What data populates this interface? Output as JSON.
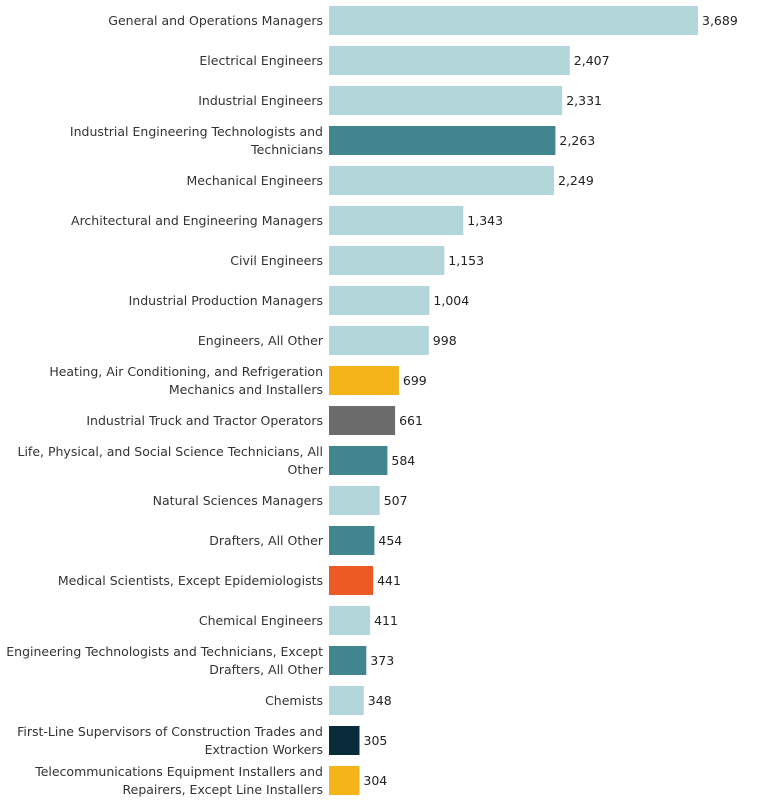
{
  "chart_data": {
    "type": "bar",
    "orientation": "horizontal",
    "title": "",
    "xlabel": "",
    "ylabel": "",
    "xlim": [
      0,
      3689
    ],
    "grid": false,
    "legend": "none",
    "categories": [
      [
        "General and Operations Managers"
      ],
      [
        "Electrical Engineers"
      ],
      [
        "Industrial Engineers"
      ],
      [
        "Industrial Engineering Technologists and",
        "Technicians"
      ],
      [
        "Mechanical Engineers"
      ],
      [
        "Architectural and Engineering Managers"
      ],
      [
        "Civil Engineers"
      ],
      [
        "Industrial Production Managers"
      ],
      [
        "Engineers, All Other"
      ],
      [
        "Heating, Air Conditioning, and Refrigeration",
        "Mechanics and Installers"
      ],
      [
        "Industrial Truck and Tractor Operators"
      ],
      [
        "Life, Physical, and Social Science Technicians, All",
        "Other"
      ],
      [
        "Natural Sciences Managers"
      ],
      [
        "Drafters, All Other"
      ],
      [
        "Medical Scientists, Except Epidemiologists"
      ],
      [
        "Chemical Engineers"
      ],
      [
        "Engineering Technologists and Technicians, Except",
        "Drafters, All Other"
      ],
      [
        "Chemists"
      ],
      [
        "First-Line Supervisors of Construction Trades and",
        "Extraction Workers"
      ],
      [
        "Telecommunications Equipment Installers and",
        "Repairers, Except Line Installers"
      ]
    ],
    "values": [
      3689,
      2407,
      2331,
      2263,
      2249,
      1343,
      1153,
      1004,
      998,
      699,
      661,
      584,
      507,
      454,
      441,
      411,
      373,
      348,
      305,
      304
    ],
    "value_labels": [
      "3,689",
      "2,407",
      "2,331",
      "2,263",
      "2,249",
      "1,343",
      "1,153",
      "1,004",
      "998",
      "699",
      "661",
      "584",
      "507",
      "454",
      "441",
      "411",
      "373",
      "348",
      "305",
      "304"
    ],
    "colors": [
      "#b3d6da",
      "#b3d6da",
      "#b3d6da",
      "#41868f",
      "#b3d6da",
      "#b3d6da",
      "#b3d6da",
      "#b3d6da",
      "#b3d6da",
      "#f4b41a",
      "#6c6c6c",
      "#41868f",
      "#b3d6da",
      "#41868f",
      "#ee5a24",
      "#b3d6da",
      "#41868f",
      "#b3d6da",
      "#0a2c3a",
      "#f4b41a"
    ]
  }
}
